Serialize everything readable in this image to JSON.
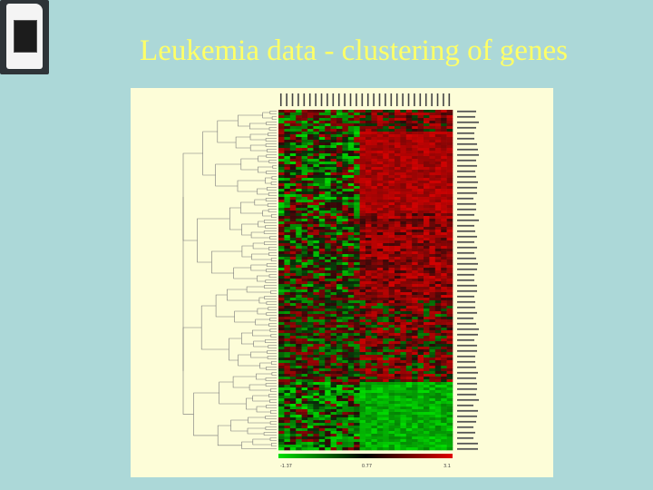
{
  "title": "Leukemia data - clustering of genes",
  "logo": {
    "brand": "",
    "label": ""
  },
  "chart_data": {
    "type": "heatmap",
    "title": "",
    "xlabel": "",
    "ylabel": "",
    "rows": 125,
    "cols": 30,
    "colorbar": {
      "ticks": [
        -1.37,
        0.77,
        3.1
      ],
      "tick_labels": [
        "-1.37",
        "0.77",
        "3.1"
      ],
      "colors": [
        "#00e000",
        "#000000",
        "#e00000"
      ]
    },
    "blocks": [
      {
        "rows": [
          0,
          8
        ],
        "cols": [
          0,
          14
        ],
        "pattern": "mixed_green_red"
      },
      {
        "rows": [
          0,
          8
        ],
        "cols": [
          14,
          30
        ],
        "pattern": "mixed_red"
      },
      {
        "rows": [
          8,
          38
        ],
        "cols": [
          0,
          14
        ],
        "pattern": "green_dark_mixed"
      },
      {
        "rows": [
          8,
          38
        ],
        "cols": [
          14,
          30
        ],
        "pattern": "red"
      },
      {
        "rows": [
          38,
          70
        ],
        "cols": [
          0,
          14
        ],
        "pattern": "dark_mixed"
      },
      {
        "rows": [
          38,
          70
        ],
        "cols": [
          14,
          30
        ],
        "pattern": "red_dark"
      },
      {
        "rows": [
          70,
          100
        ],
        "cols": [
          0,
          14
        ],
        "pattern": "mixed"
      },
      {
        "rows": [
          70,
          100
        ],
        "cols": [
          14,
          30
        ],
        "pattern": "red_mixed"
      },
      {
        "rows": [
          100,
          125
        ],
        "cols": [
          0,
          14
        ],
        "pattern": "green_mixed"
      },
      {
        "rows": [
          100,
          125
        ],
        "cols": [
          14,
          30
        ],
        "pattern": "green"
      }
    ],
    "grid": false,
    "dendrogram": "left"
  }
}
